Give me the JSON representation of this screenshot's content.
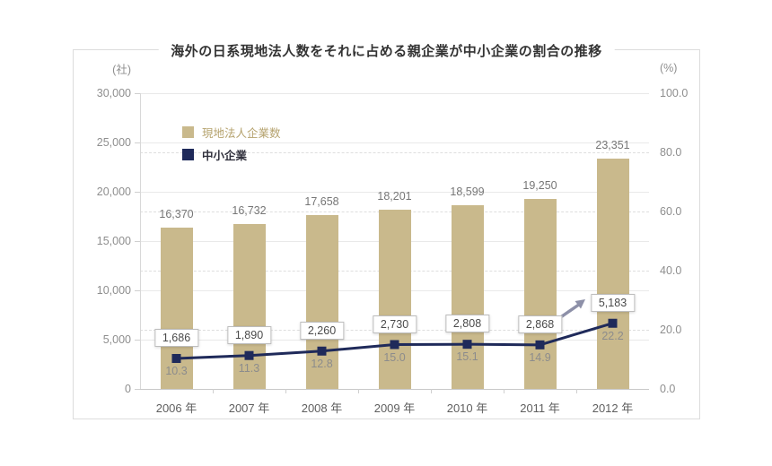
{
  "chart_data": {
    "type": "bar+line",
    "title": "海外の日系現地法人数をそれに占める親企業が中小企業の割合の推移",
    "categories": [
      "2006 年",
      "2007 年",
      "2008 年",
      "2009 年",
      "2010 年",
      "2011 年",
      "2012 年"
    ],
    "left_axis": {
      "unit": "(社)",
      "min": 0,
      "max": 30000,
      "tick_step": 5000,
      "ticks": [
        {
          "value": 30000,
          "label": "30,000"
        },
        {
          "value": 25000,
          "label": "25,000"
        },
        {
          "value": 20000,
          "label": "20,000"
        },
        {
          "value": 15000,
          "label": "15,000"
        },
        {
          "value": 10000,
          "label": "10,000"
        },
        {
          "value": 5000,
          "label": "5,000"
        },
        {
          "value": 0,
          "label": "0"
        }
      ]
    },
    "right_axis": {
      "unit": "(%)",
      "min": 0,
      "max": 100,
      "tick_step": 20,
      "ticks": [
        {
          "value": 100,
          "label": "100.0"
        },
        {
          "value": 80,
          "label": "80.0"
        },
        {
          "value": 60,
          "label": "60.0"
        },
        {
          "value": 40,
          "label": "40.0"
        },
        {
          "value": 20,
          "label": "20.0"
        },
        {
          "value": 0,
          "label": "0.0"
        }
      ]
    },
    "series": [
      {
        "name": "現地法人企業数",
        "type": "bar",
        "axis": "left",
        "color": "#c9b98c",
        "values": [
          16370,
          16732,
          17658,
          18201,
          18599,
          19250,
          23351
        ],
        "value_labels": [
          "16,370",
          "16,732",
          "17,658",
          "18,201",
          "18,599",
          "19,250",
          "23,351"
        ]
      },
      {
        "name": "中小企業",
        "type": "line",
        "axis": "right",
        "color": "#1f2a5a",
        "percent_values": [
          10.3,
          11.3,
          12.8,
          15.0,
          15.1,
          14.9,
          22.2
        ],
        "percent_labels": [
          "10.3",
          "11.3",
          "12.8",
          "15.0",
          "15.1",
          "14.9",
          "22.2"
        ],
        "count_labels": [
          "1,686",
          "1,890",
          "2,260",
          "2,730",
          "2,808",
          "2,868",
          "5,183"
        ]
      }
    ],
    "annotation": {
      "type": "arrow",
      "points_to": "5,183",
      "direction": "up-right",
      "color": "#8d90a8"
    },
    "grid": {
      "left_ticks_style": "solid",
      "right_ticks_style": "dashed"
    },
    "legend_position": "inside-top-left"
  }
}
